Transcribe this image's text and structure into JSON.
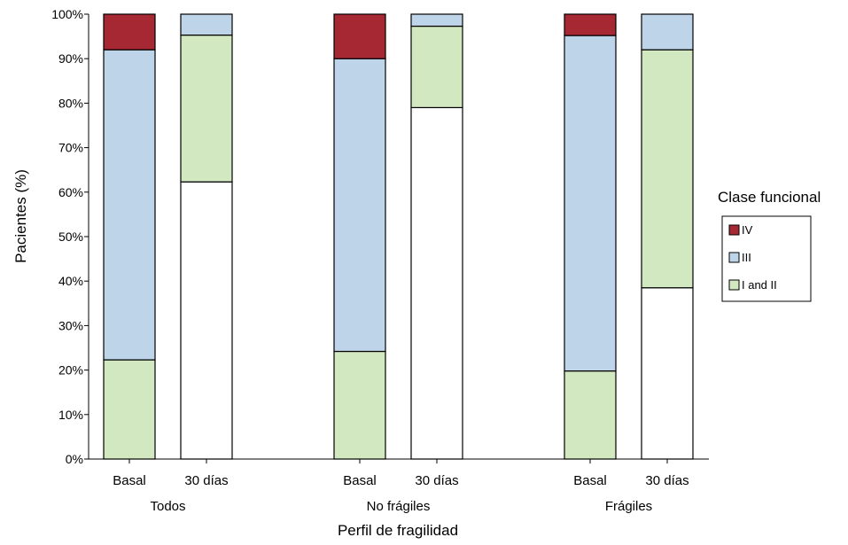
{
  "chart_data": {
    "type": "bar",
    "stacked": true,
    "title": "",
    "xlabel": "Perfil de fragilidad",
    "ylabel": "Pacientes (%)",
    "ylim": [
      0,
      100
    ],
    "yticks": [
      "0%",
      "10%",
      "20%",
      "30%",
      "40%",
      "50%",
      "60%",
      "70%",
      "80%",
      "90%",
      "100%"
    ],
    "groups": [
      "Todos",
      "No frágiles",
      "Frágiles"
    ],
    "categories": [
      "Basal",
      "30 días",
      "Basal",
      "30 días",
      "Basal",
      "30 días"
    ],
    "series": [
      {
        "name": "I and II",
        "color": "#d2e8c0",
        "values": [
          22.3,
          33.0,
          24.2,
          18.3,
          19.8,
          53.5
        ]
      },
      {
        "name": "III",
        "color": "#bed5e9",
        "values": [
          69.7,
          4.7,
          65.8,
          2.7,
          75.4,
          8.0
        ]
      },
      {
        "name": "IV",
        "color": "#a52833",
        "values": [
          8.0,
          0,
          10.0,
          0,
          4.8,
          0
        ]
      }
    ],
    "blank_fill_values": [
      0,
      62.3,
      0,
      79.0,
      0,
      38.5
    ],
    "legend": {
      "title": "Clase funcional",
      "position": "right",
      "entries": [
        "IV",
        "III",
        "I and II"
      ]
    },
    "grid": false
  }
}
